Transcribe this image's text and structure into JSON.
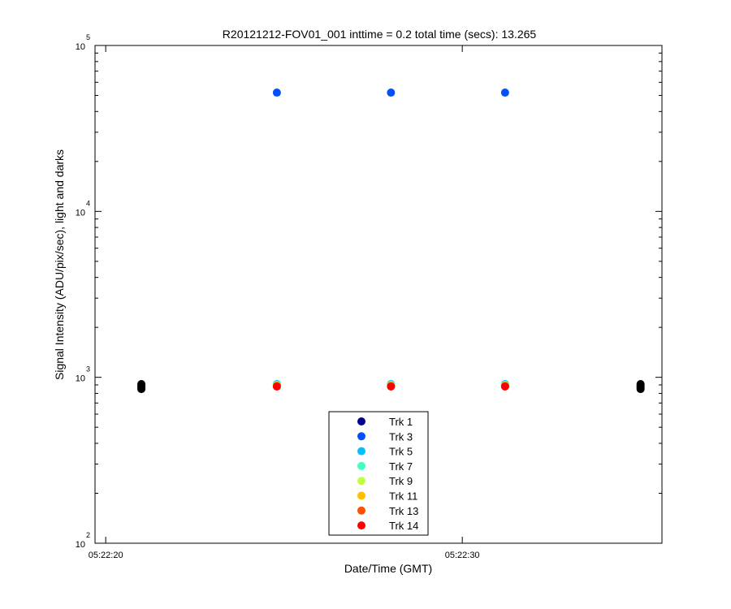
{
  "chart_data": {
    "type": "scatter",
    "title": "R20121212-FOV01_001 inttime = 0.2 total time (secs): 13.265",
    "xlabel": "Date/Time (GMT)",
    "ylabel": "Signal Intensity (ADU/pix/sec), light and darks",
    "yscale": "log",
    "ylim": [
      100,
      100000
    ],
    "xlim_seconds": [
      19.7,
      35.6
    ],
    "x_tick_labels": [
      "05:22:20",
      "05:22:30"
    ],
    "x_tick_seconds": [
      20,
      30
    ],
    "y_tick_labels": [
      {
        "base": "10",
        "exp": "2"
      },
      {
        "base": "10",
        "exp": "3"
      },
      {
        "base": "10",
        "exp": "4"
      },
      {
        "base": "10",
        "exp": "5"
      }
    ],
    "y_tick_values": [
      100,
      1000,
      10000,
      100000
    ],
    "grid": false,
    "legend_position": "bottom-center",
    "series": [
      {
        "name": "Trk 1",
        "color": "#00008f",
        "x": [
          24.8,
          28.0,
          31.2
        ],
        "y": [
          900,
          900,
          900
        ]
      },
      {
        "name": "Trk 3",
        "color": "#0050ff",
        "x": [
          24.8,
          28.0,
          31.2
        ],
        "y": [
          52000,
          52000,
          52000
        ]
      },
      {
        "name": "Trk 5",
        "color": "#00bfff",
        "x": [
          24.8,
          28.0,
          31.2
        ],
        "y": [
          910,
          910,
          910
        ]
      },
      {
        "name": "Trk 7",
        "color": "#40ffbf",
        "x": [
          24.8,
          28.0,
          31.2
        ],
        "y": [
          900,
          900,
          900
        ]
      },
      {
        "name": "Trk 9",
        "color": "#bfff40",
        "x": [
          24.8,
          28.0,
          31.2
        ],
        "y": [
          895,
          895,
          895
        ]
      },
      {
        "name": "Trk 11",
        "color": "#ffbf00",
        "x": [
          24.8,
          28.0,
          31.2
        ],
        "y": [
          890,
          890,
          890
        ]
      },
      {
        "name": "Trk 13",
        "color": "#ff5000",
        "x": [
          24.8,
          28.0,
          31.2
        ],
        "y": [
          885,
          885,
          885
        ]
      },
      {
        "name": "Trk 14",
        "color": "#ff0000",
        "x": [
          24.8,
          28.0,
          31.2
        ],
        "y": [
          880,
          880,
          880
        ]
      },
      {
        "name": "",
        "color": "#000000",
        "x": [
          21.0,
          21.0,
          21.0,
          21.0,
          21.0,
          35.0,
          35.0,
          35.0,
          35.0,
          35.0
        ],
        "y": [
          850,
          865,
          880,
          895,
          910,
          850,
          865,
          880,
          895,
          910
        ]
      }
    ]
  }
}
